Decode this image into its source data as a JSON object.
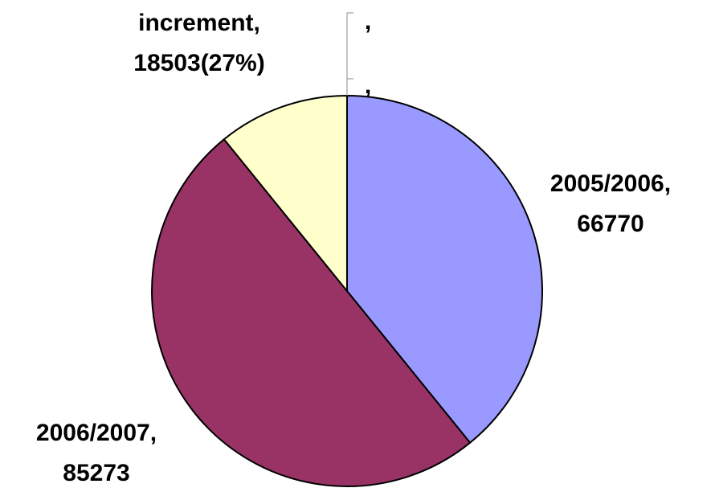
{
  "chart_data": {
    "type": "pie",
    "categories": [
      "2005/2006",
      "2006/2007",
      "increment"
    ],
    "values": [
      66770,
      85273,
      18503
    ],
    "value_labels": [
      "66770",
      "85273",
      "18503(27%)"
    ],
    "label_separator": ",",
    "colors": [
      "#9999ff",
      "#993366",
      "#ffffcc"
    ],
    "annotations": [
      ",",
      ","
    ]
  }
}
